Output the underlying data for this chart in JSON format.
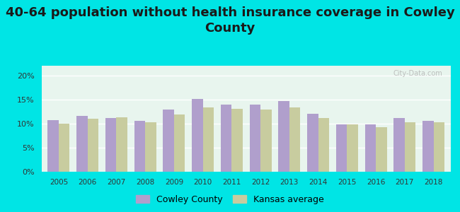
{
  "title": "40-64 population without health insurance coverage in Cowley\nCounty",
  "years": [
    2005,
    2006,
    2007,
    2008,
    2009,
    2010,
    2011,
    2012,
    2013,
    2014,
    2015,
    2016,
    2017,
    2018
  ],
  "cowley": [
    10.7,
    11.6,
    11.2,
    10.5,
    12.9,
    15.1,
    13.9,
    13.9,
    14.6,
    12.1,
    9.8,
    9.9,
    11.1,
    10.5
  ],
  "kansas": [
    10.0,
    11.0,
    11.3,
    10.2,
    11.9,
    13.3,
    13.0,
    12.9,
    13.3,
    11.1,
    9.8,
    9.2,
    10.3,
    10.3
  ],
  "cowley_color": "#b09fcc",
  "kansas_color": "#c8cc9f",
  "bg_outer": "#00e5e5",
  "bg_plot": "#e8f5ee",
  "ylim": [
    0,
    22
  ],
  "yticks": [
    0,
    5,
    10,
    15,
    20
  ],
  "ytick_labels": [
    "0%",
    "5%",
    "10%",
    "15%",
    "20%"
  ],
  "title_fontsize": 13,
  "legend_cowley": "Cowley County",
  "legend_kansas": "Kansas average",
  "bar_width": 0.38
}
